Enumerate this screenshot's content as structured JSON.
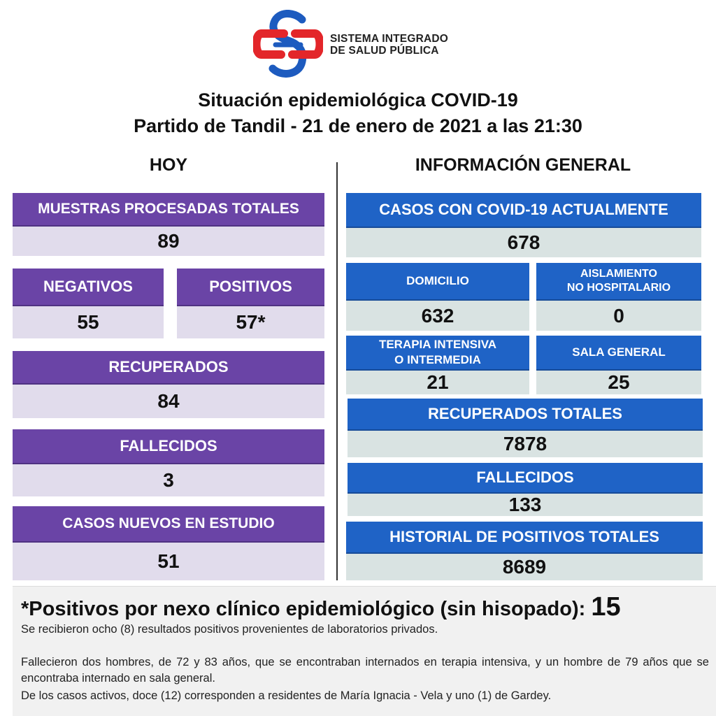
{
  "brand": {
    "line1": "SISTEMA INTEGRADO",
    "line2": "DE SALUD PÚBLICA",
    "logo_colors": [
      "#e3262a",
      "#1d5bbf"
    ]
  },
  "title": {
    "line1": "Situación epidemiológica COVID-19",
    "line2": "Partido de Tandil - 21 de enero de 2021 a las 21:30"
  },
  "hoy": {
    "heading": "HOY",
    "muestras": {
      "label": "MUESTRAS PROCESADAS TOTALES",
      "value": "89"
    },
    "negativos": {
      "label": "NEGATIVOS",
      "value": "55"
    },
    "positivos": {
      "label": "POSITIVOS",
      "value": "57*"
    },
    "recuperados": {
      "label": "RECUPERADOS",
      "value": "84"
    },
    "fallecidos": {
      "label": "FALLECIDOS",
      "value": "3"
    },
    "casos_nuevos": {
      "label": "CASOS NUEVOS EN ESTUDIO",
      "value": "51"
    }
  },
  "general": {
    "heading": "INFORMACIÓN GENERAL",
    "casos_actuales": {
      "label": "CASOS CON COVID-19 ACTUALMENTE",
      "value": "678"
    },
    "domicilio": {
      "label": "DOMICILIO",
      "value": "632"
    },
    "aislamiento": {
      "label_line1": "AISLAMIENTO",
      "label_line2": "NO HOSPITALARIO",
      "value": "0"
    },
    "terapia": {
      "label_line1": "TERAPIA INTENSIVA",
      "label_line2": "O INTERMEDIA",
      "value": "21"
    },
    "sala_general": {
      "label": "SALA GENERAL",
      "value": "25"
    },
    "recuperados_totales": {
      "label": "RECUPERADOS TOTALES",
      "value": "7878"
    },
    "fallecidos": {
      "label": "FALLECIDOS",
      "value": "133"
    },
    "historial": {
      "label": "HISTORIAL DE POSITIVOS TOTALES",
      "value": "8689"
    }
  },
  "notes": {
    "heading": "*Positivos por nexo clínico epidemiológico (sin hisopado):",
    "heading_value": "15",
    "p1": "Se recibieron ocho (8) resultados positivos provenientes de laboratorios privados.",
    "p2": "Fallecieron dos hombres, de 72 y 83 años, que se encontraban internados en terapia intensiva, y un hombre de 79 años que se encontraba internado en sala general.",
    "p3": "De los casos activos, doce (12) corresponden a residentes de María Ignacia - Vela y uno (1) de Gardey."
  },
  "colors": {
    "purple_header": "#6a44a6",
    "purple_value": "#e1dcec",
    "blue_header": "#1f63c6",
    "blue_value": "#d9e3e2"
  }
}
